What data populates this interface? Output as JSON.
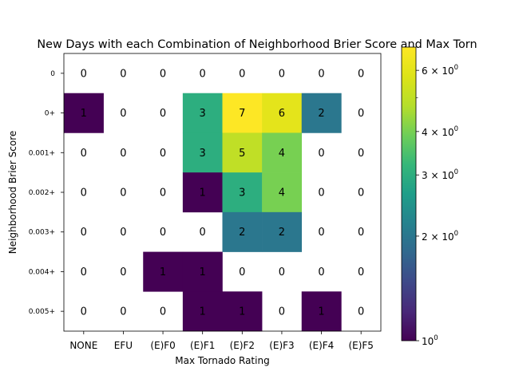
{
  "chart_data": {
    "type": "heatmap",
    "title": "New Days with each Combination of Neighborhood Brier Score and Max Torn",
    "xlabel": "Max Tornado Rating",
    "ylabel": "Neighborhood Brier Score",
    "x_categories": [
      "NONE",
      "EFU",
      "(E)F0",
      "(E)F1",
      "(E)F2",
      "(E)F3",
      "(E)F4",
      "(E)F5"
    ],
    "y_categories": [
      "0",
      "0+",
      "0.001+",
      "0.002+",
      "0.003+",
      "0.004+",
      "0.005+"
    ],
    "values": [
      [
        0,
        0,
        0,
        0,
        0,
        0,
        0,
        0
      ],
      [
        1,
        0,
        0,
        3,
        7,
        6,
        2,
        0
      ],
      [
        0,
        0,
        0,
        3,
        5,
        4,
        0,
        0
      ],
      [
        0,
        0,
        0,
        1,
        3,
        4,
        0,
        0
      ],
      [
        0,
        0,
        0,
        0,
        2,
        2,
        0,
        0
      ],
      [
        0,
        0,
        1,
        1,
        0,
        0,
        0,
        0
      ],
      [
        0,
        0,
        0,
        1,
        1,
        0,
        1,
        0
      ]
    ],
    "color_scale": "log",
    "colormap": "viridis",
    "colorbar": {
      "range": [
        1,
        7
      ],
      "ticks": [
        {
          "value": 1,
          "base": "10",
          "exp": "0"
        },
        {
          "value": 2,
          "base": "2 × 10",
          "exp": "0"
        },
        {
          "value": 3,
          "base": "3 × 10",
          "exp": "0"
        },
        {
          "value": 4,
          "base": "4 × 10",
          "exp": "0"
        },
        {
          "value": 6,
          "base": "6 × 10",
          "exp": "0"
        }
      ],
      "minor_ticks": [
        5
      ]
    },
    "zero_cells_color": "#ffffff"
  }
}
